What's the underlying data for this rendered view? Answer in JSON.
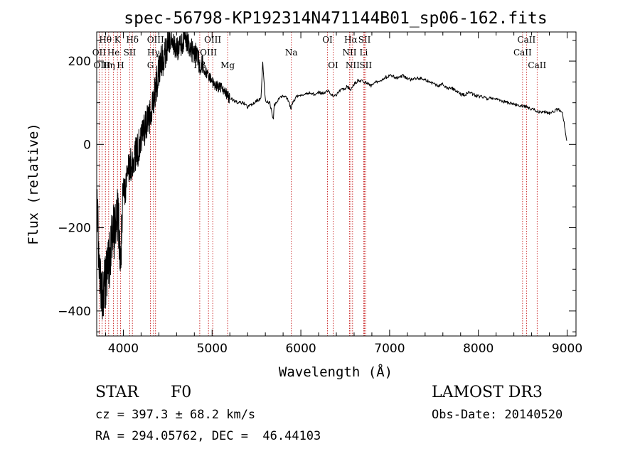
{
  "chart_data": {
    "type": "line",
    "title": "spec-56798-KP192314N471144B01_sp06-162.fits",
    "xlabel": "Wavelength (Å)",
    "ylabel": "Flux (relative)",
    "xlim": [
      3700,
      9100
    ],
    "ylim": [
      -460,
      270
    ],
    "xticks": [
      4000,
      5000,
      6000,
      7000,
      8000,
      9000
    ],
    "yticks": [
      -400,
      -200,
      0,
      200
    ],
    "xtick_labels": [
      "4000",
      "5000",
      "6000",
      "7000",
      "8000",
      "9000"
    ],
    "ytick_labels": [
      "−400",
      "−200",
      "0",
      "200"
    ],
    "series": [
      {
        "name": "flux",
        "x": [
          3705,
          3730,
          3760,
          3790,
          3820,
          3850,
          3880,
          3910,
          3940,
          3970,
          4000,
          4030,
          4060,
          4100,
          4150,
          4200,
          4250,
          4300,
          4340,
          4380,
          4420,
          4460,
          4500,
          4550,
          4600,
          4650,
          4700,
          4750,
          4800,
          4840,
          4861,
          4880,
          4920,
          4960,
          5000,
          5050,
          5100,
          5150,
          5200,
          5250,
          5300,
          5350,
          5400,
          5450,
          5500,
          5550,
          5570,
          5600,
          5650,
          5690,
          5700,
          5720,
          5750,
          5800,
          5850,
          5890,
          5895,
          5950,
          6000,
          6050,
          6100,
          6150,
          6200,
          6250,
          6300,
          6350,
          6400,
          6450,
          6500,
          6520,
          6563,
          6600,
          6650,
          6700,
          6750,
          6800,
          6850,
          6900,
          6950,
          7000,
          7050,
          7100,
          7150,
          7200,
          7250,
          7300,
          7350,
          7400,
          7450,
          7500,
          7550,
          7600,
          7650,
          7700,
          7750,
          7800,
          7850,
          7900,
          7950,
          8000,
          8050,
          8100,
          8150,
          8200,
          8250,
          8300,
          8350,
          8400,
          8450,
          8500,
          8542,
          8580,
          8620,
          8662,
          8700,
          8750,
          8800,
          8850,
          8900,
          8950,
          8980,
          9000
        ],
        "y": [
          -150,
          -300,
          -360,
          -340,
          -300,
          -270,
          -200,
          -210,
          -160,
          -280,
          -120,
          -100,
          -60,
          -40,
          -20,
          10,
          40,
          70,
          110,
          150,
          200,
          200,
          250,
          240,
          225,
          240,
          255,
          230,
          225,
          210,
          180,
          200,
          175,
          165,
          150,
          140,
          135,
          125,
          110,
          105,
          100,
          100,
          90,
          95,
          105,
          110,
          200,
          105,
          100,
          60,
          95,
          100,
          110,
          115,
          110,
          85,
          95,
          115,
          120,
          122,
          125,
          120,
          125,
          122,
          130,
          118,
          120,
          130,
          135,
          140,
          130,
          145,
          155,
          150,
          148,
          140,
          150,
          155,
          160,
          165,
          162,
          160,
          165,
          158,
          155,
          160,
          158,
          155,
          150,
          145,
          140,
          145,
          135,
          135,
          130,
          120,
          120,
          125,
          120,
          115,
          115,
          110,
          112,
          108,
          105,
          102,
          100,
          96,
          95,
          92,
          90,
          86,
          84,
          80,
          78,
          78,
          75,
          80,
          84,
          75,
          30,
          5
        ]
      }
    ],
    "line_markers": [
      {
        "label": "Hθ",
        "wavelength": 3798,
        "row": 1
      },
      {
        "label": "K",
        "wavelength": 3934,
        "row": 1
      },
      {
        "label": "Hδ",
        "wavelength": 4102,
        "row": 1
      },
      {
        "label": "OIII",
        "wavelength": 4363,
        "row": 1
      },
      {
        "label": "OIII",
        "wavelength": 5007,
        "row": 1
      },
      {
        "label": "OI",
        "wavelength": 6300,
        "row": 1
      },
      {
        "label": "Hα",
        "wavelength": 6563,
        "row": 1
      },
      {
        "label": "SII",
        "wavelength": 6717,
        "row": 1
      },
      {
        "label": "CaII",
        "wavelength": 8542,
        "row": 1
      },
      {
        "label": "OII",
        "wavelength": 3727,
        "row": 2
      },
      {
        "label": "He",
        "wavelength": 3889,
        "row": 2
      },
      {
        "label": "SII",
        "wavelength": 4072,
        "row": 2
      },
      {
        "label": "Hγ",
        "wavelength": 4340,
        "row": 2
      },
      {
        "label": "OIII",
        "wavelength": 4959,
        "row": 2
      },
      {
        "label": "Na",
        "wavelength": 5893,
        "row": 2
      },
      {
        "label": "NII",
        "wavelength": 6548,
        "row": 2
      },
      {
        "label": "Li",
        "wavelength": 6708,
        "row": 2
      },
      {
        "label": "CaII",
        "wavelength": 8498,
        "row": 2
      },
      {
        "label": "OIII",
        "wavelength": 3760,
        "row": 3
      },
      {
        "label": "Hη",
        "wavelength": 3835,
        "row": 3
      },
      {
        "label": "H",
        "wavelength": 3968,
        "row": 3
      },
      {
        "label": "G",
        "wavelength": 4305,
        "row": 3
      },
      {
        "label": "Hβ",
        "wavelength": 4861,
        "row": 3
      },
      {
        "label": "Mg",
        "wavelength": 5175,
        "row": 3
      },
      {
        "label": "OI",
        "wavelength": 6364,
        "row": 3
      },
      {
        "label": "NII",
        "wavelength": 6583,
        "row": 3
      },
      {
        "label": "SII",
        "wavelength": 6731,
        "row": 3
      },
      {
        "label": "CaII",
        "wavelength": 8662,
        "row": 3
      }
    ]
  },
  "info": {
    "obj_class": "STAR",
    "subclass": "F0",
    "survey": "LAMOST DR3",
    "cz": "cz = 397.3 ± 68.2 km/s",
    "obs_date": "Obs-Date: 20140520",
    "coords": "RA = 294.05762, DEC =  46.44103"
  },
  "colors": {
    "spectrum": "#000000",
    "marker_line": "#c00000",
    "axes": "#000000"
  }
}
